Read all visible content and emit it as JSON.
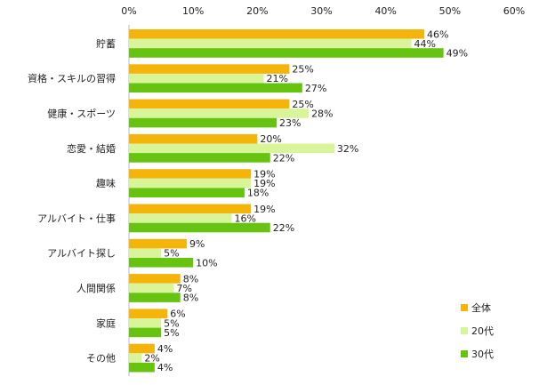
{
  "chart_data": {
    "type": "bar",
    "orientation": "horizontal",
    "xlim": [
      0,
      60
    ],
    "xticks": [
      "0%",
      "10%",
      "20%",
      "30%",
      "40%",
      "50%",
      "60%"
    ],
    "grid": false,
    "legend_position": "bottom-right",
    "categories": [
      "貯蓄",
      "資格・スキルの習得",
      "健康・スポーツ",
      "恋愛・結婚",
      "趣味",
      "アルバイト・仕事",
      "アルバイト探し",
      "人間関係",
      "家庭",
      "その他"
    ],
    "series": [
      {
        "name": "全体",
        "color": "#f5b40a",
        "values": [
          46,
          25,
          25,
          20,
          19,
          19,
          9,
          8,
          6,
          4
        ],
        "labels": [
          "46%",
          "25%",
          "25%",
          "20%",
          "19%",
          "19%",
          "9%",
          "8%",
          "6%",
          "4%"
        ]
      },
      {
        "name": "20代",
        "color": "#d9f59a",
        "values": [
          44,
          21,
          28,
          32,
          19,
          16,
          5,
          7,
          5,
          2
        ],
        "labels": [
          "44%",
          "21%",
          "28%",
          "32%",
          "19%",
          "16%",
          "5%",
          "7%",
          "5%",
          "2%"
        ]
      },
      {
        "name": "30代",
        "color": "#66c410",
        "values": [
          49,
          27,
          23,
          22,
          18,
          22,
          10,
          8,
          5,
          4
        ],
        "labels": [
          "49%",
          "27%",
          "23%",
          "22%",
          "18%",
          "22%",
          "10%",
          "8%",
          "5%",
          "4%"
        ]
      }
    ]
  }
}
